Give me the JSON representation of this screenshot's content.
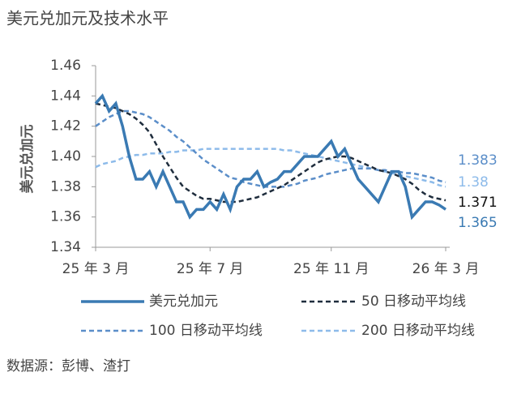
{
  "chart_data": {
    "type": "line",
    "title": "美元兑加元及技术水平",
    "y_label": "美元兑加元",
    "source": "数据源：彭博、渣打",
    "x": [
      "25 年 3 月",
      null,
      null,
      null,
      null,
      null,
      null,
      null,
      null,
      null,
      null,
      null,
      null,
      null,
      null,
      null,
      null,
      "25 年 7 月",
      null,
      null,
      null,
      null,
      null,
      null,
      null,
      null,
      null,
      null,
      null,
      null,
      null,
      null,
      null,
      null,
      null,
      "25 年 11 月",
      null,
      null,
      null,
      null,
      null,
      null,
      null,
      null,
      null,
      null,
      null,
      null,
      null,
      null,
      null,
      null,
      "26 年 3 月"
    ],
    "ylim": [
      1.34,
      1.46
    ],
    "yticks": [
      1.34,
      1.36,
      1.38,
      {
        "value": 1.4,
        "label": "1.40"
      },
      1.42,
      1.44,
      1.46
    ],
    "grid": false,
    "series": [
      {
        "name": "美元兑加元",
        "color": "#3a7ab3",
        "dash": "solid",
        "values": [
          1.435,
          1.44,
          1.43,
          1.435,
          1.42,
          1.4,
          1.385,
          1.385,
          1.39,
          1.38,
          1.39,
          1.38,
          1.37,
          1.37,
          1.36,
          1.365,
          1.365,
          1.37,
          1.365,
          1.375,
          1.365,
          1.38,
          1.385,
          1.385,
          1.39,
          1.38,
          1.383,
          1.385,
          1.39,
          1.39,
          1.395,
          1.4,
          1.4,
          1.4,
          1.405,
          1.41,
          1.4,
          1.405,
          1.395,
          1.385,
          1.38,
          1.375,
          1.37,
          1.38,
          1.39,
          1.39,
          1.38,
          1.36,
          1.365,
          1.37,
          1.37,
          1.368,
          1.365
        ]
      },
      {
        "name": "50 日移动平均线",
        "color": "#1f2d3d",
        "dash": "dashed",
        "values": [
          1.435,
          1.434,
          1.433,
          1.432,
          1.43,
          1.428,
          1.425,
          1.421,
          1.416,
          1.408,
          1.4,
          1.393,
          1.386,
          1.38,
          1.377,
          1.374,
          1.372,
          1.372,
          1.371,
          1.37,
          1.37,
          1.37,
          1.371,
          1.372,
          1.373,
          1.375,
          1.377,
          1.379,
          1.381,
          1.384,
          1.387,
          1.39,
          1.393,
          1.396,
          1.398,
          1.399,
          1.4,
          1.4,
          1.399,
          1.397,
          1.395,
          1.393,
          1.391,
          1.39,
          1.389,
          1.387,
          1.385,
          1.382,
          1.378,
          1.375,
          1.373,
          1.372,
          1.371
        ]
      },
      {
        "name": "100 日移动平均线",
        "color": "#5b8ec9",
        "dash": "dashed",
        "values": [
          1.42,
          1.423,
          1.426,
          1.428,
          1.43,
          1.43,
          1.429,
          1.428,
          1.426,
          1.423,
          1.42,
          1.417,
          1.413,
          1.41,
          1.406,
          1.402,
          1.398,
          1.395,
          1.392,
          1.389,
          1.386,
          1.385,
          1.383,
          1.382,
          1.381,
          1.38,
          1.38,
          1.38,
          1.38,
          1.381,
          1.382,
          1.384,
          1.385,
          1.386,
          1.388,
          1.389,
          1.39,
          1.391,
          1.392,
          1.392,
          1.392,
          1.392,
          1.391,
          1.391,
          1.39,
          1.39,
          1.389,
          1.389,
          1.388,
          1.387,
          1.386,
          1.384,
          1.383
        ]
      },
      {
        "name": "200 日移动平均线",
        "color": "#8dbbea",
        "dash": "dashed",
        "values": [
          1.393,
          1.395,
          1.396,
          1.397,
          1.399,
          1.4,
          1.401,
          1.401,
          1.402,
          1.402,
          1.402,
          1.403,
          1.403,
          1.404,
          1.404,
          1.404,
          1.405,
          1.405,
          1.405,
          1.405,
          1.405,
          1.405,
          1.405,
          1.405,
          1.405,
          1.405,
          1.405,
          1.405,
          1.404,
          1.404,
          1.403,
          1.402,
          1.401,
          1.4,
          1.399,
          1.398,
          1.397,
          1.396,
          1.395,
          1.394,
          1.393,
          1.392,
          1.391,
          1.39,
          1.389,
          1.388,
          1.387,
          1.386,
          1.385,
          1.384,
          1.383,
          1.381,
          1.38
        ]
      }
    ]
  }
}
